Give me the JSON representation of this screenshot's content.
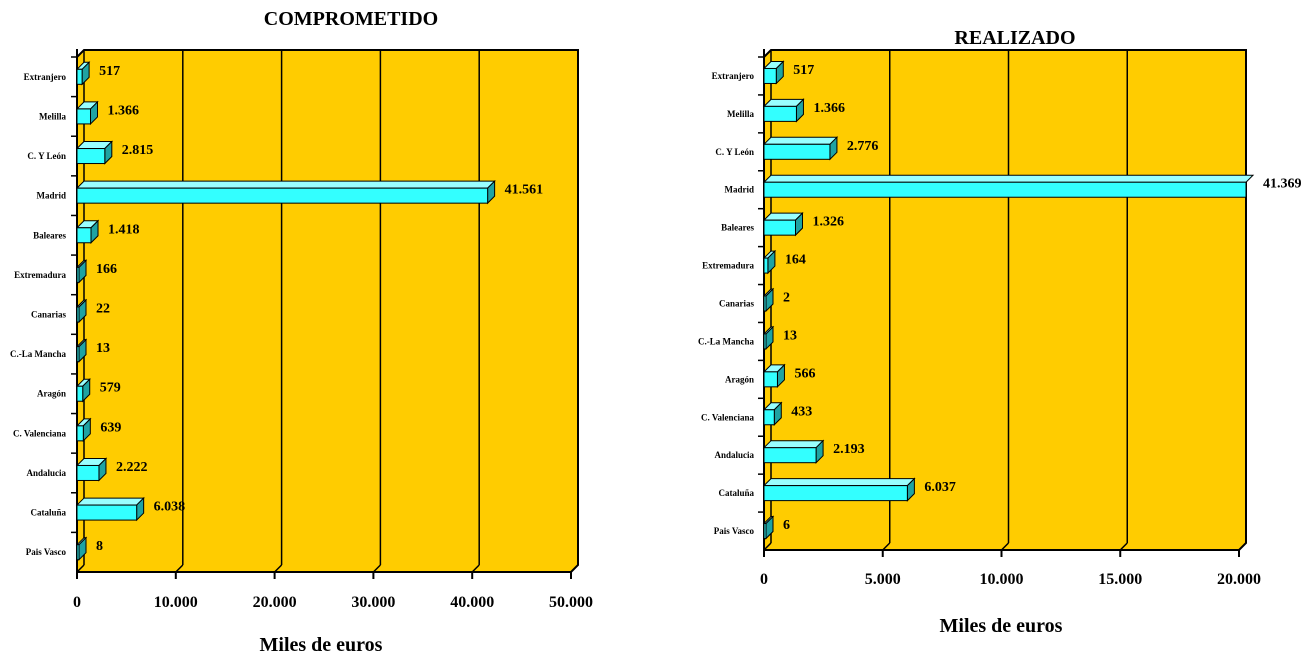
{
  "colors": {
    "plot_background": "#FFCC00",
    "bar_front": "#33FFFF",
    "bar_side": "#1FA3A3",
    "bar_top": "#99FFFF",
    "gridline": "#000000"
  },
  "chart_data": [
    {
      "type": "bar",
      "orientation": "horizontal",
      "title": "COMPROMETIDO",
      "xlabel": "Miles de euros",
      "ylabel": "",
      "xlim": [
        0,
        50000
      ],
      "xticks": [
        "0",
        "10.000",
        "20.000",
        "30.000",
        "40.000",
        "50.000"
      ],
      "grid": true,
      "categories": [
        "Extranjero",
        "Melilla",
        "C. Y León",
        "Madrid",
        "Baleares",
        "Extremadura",
        "Canarias",
        "C.-La Mancha",
        "Aragón",
        "C. Valenciana",
        "Andalucia",
        "Cataluña",
        "Pais Vasco"
      ],
      "values": [
        517,
        1366,
        2815,
        41561,
        1418,
        166,
        22,
        13,
        579,
        639,
        2222,
        6038,
        8
      ],
      "data_labels": [
        "517",
        "1.366",
        "2.815",
        "41.561",
        "1.418",
        "166",
        "22",
        "13",
        "579",
        "639",
        "2.222",
        "6.038",
        "8"
      ]
    },
    {
      "type": "bar",
      "orientation": "horizontal",
      "title": "REALIZADO",
      "xlabel": "Miles de euros",
      "ylabel": "",
      "xlim": [
        0,
        20000
      ],
      "xticks": [
        "0",
        "5.000",
        "10.000",
        "15.000",
        "20.000"
      ],
      "grid": true,
      "categories": [
        "Extranjero",
        "Melilla",
        "C. Y León",
        "Madrid",
        "Baleares",
        "Extremadura",
        "Canarias",
        "C.-La Mancha",
        "Aragón",
        "C. Valenciana",
        "Andalucia",
        "Cataluña",
        "Pais Vasco"
      ],
      "values": [
        517,
        1366,
        2776,
        41369,
        1326,
        164,
        2,
        13,
        566,
        433,
        2193,
        6037,
        6
      ],
      "data_labels": [
        "517",
        "1.366",
        "2.776",
        "41.369",
        "1.326",
        "164",
        "2",
        "13",
        "566",
        "433",
        "2.193",
        "6.037",
        "6"
      ]
    }
  ]
}
